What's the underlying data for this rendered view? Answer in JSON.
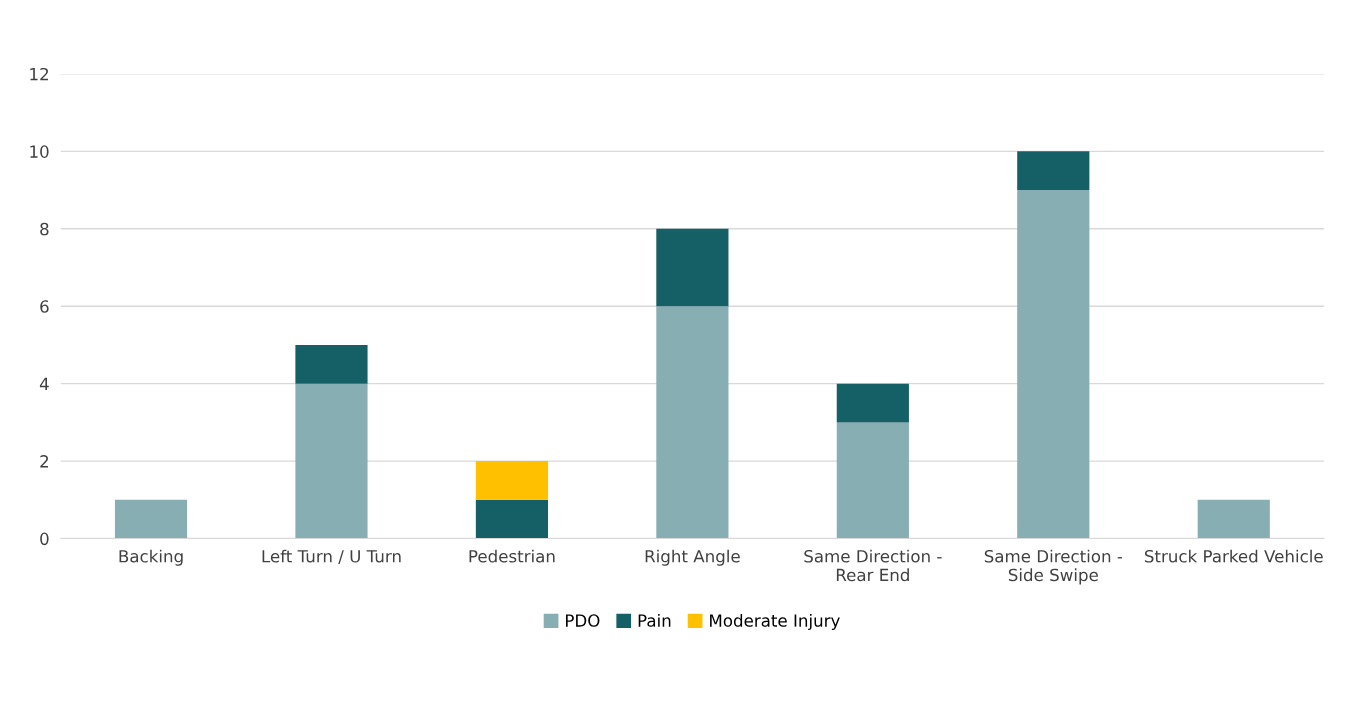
{
  "chart_data": {
    "type": "bar",
    "stacked": true,
    "categories": [
      "Backing",
      "Left Turn / U Turn",
      "Pedestrian",
      "Right Angle",
      "Same Direction -\nRear End",
      "Same Direction -\nSide Swipe",
      "Struck Parked Vehicle"
    ],
    "series": [
      {
        "name": "PDO",
        "color": "#87aeb3",
        "values": [
          1,
          4,
          0,
          6,
          3,
          9,
          1
        ]
      },
      {
        "name": "Pain",
        "color": "#155f66",
        "values": [
          0,
          1,
          1,
          2,
          1,
          1,
          0
        ]
      },
      {
        "name": "Moderate Injury",
        "color": "#ffc000",
        "values": [
          0,
          0,
          1,
          0,
          0,
          0,
          0
        ]
      }
    ],
    "ylim": [
      0,
      12
    ],
    "yticks": [
      0,
      2,
      4,
      6,
      8,
      10,
      12
    ],
    "grid": "y",
    "legend": "bottom"
  }
}
